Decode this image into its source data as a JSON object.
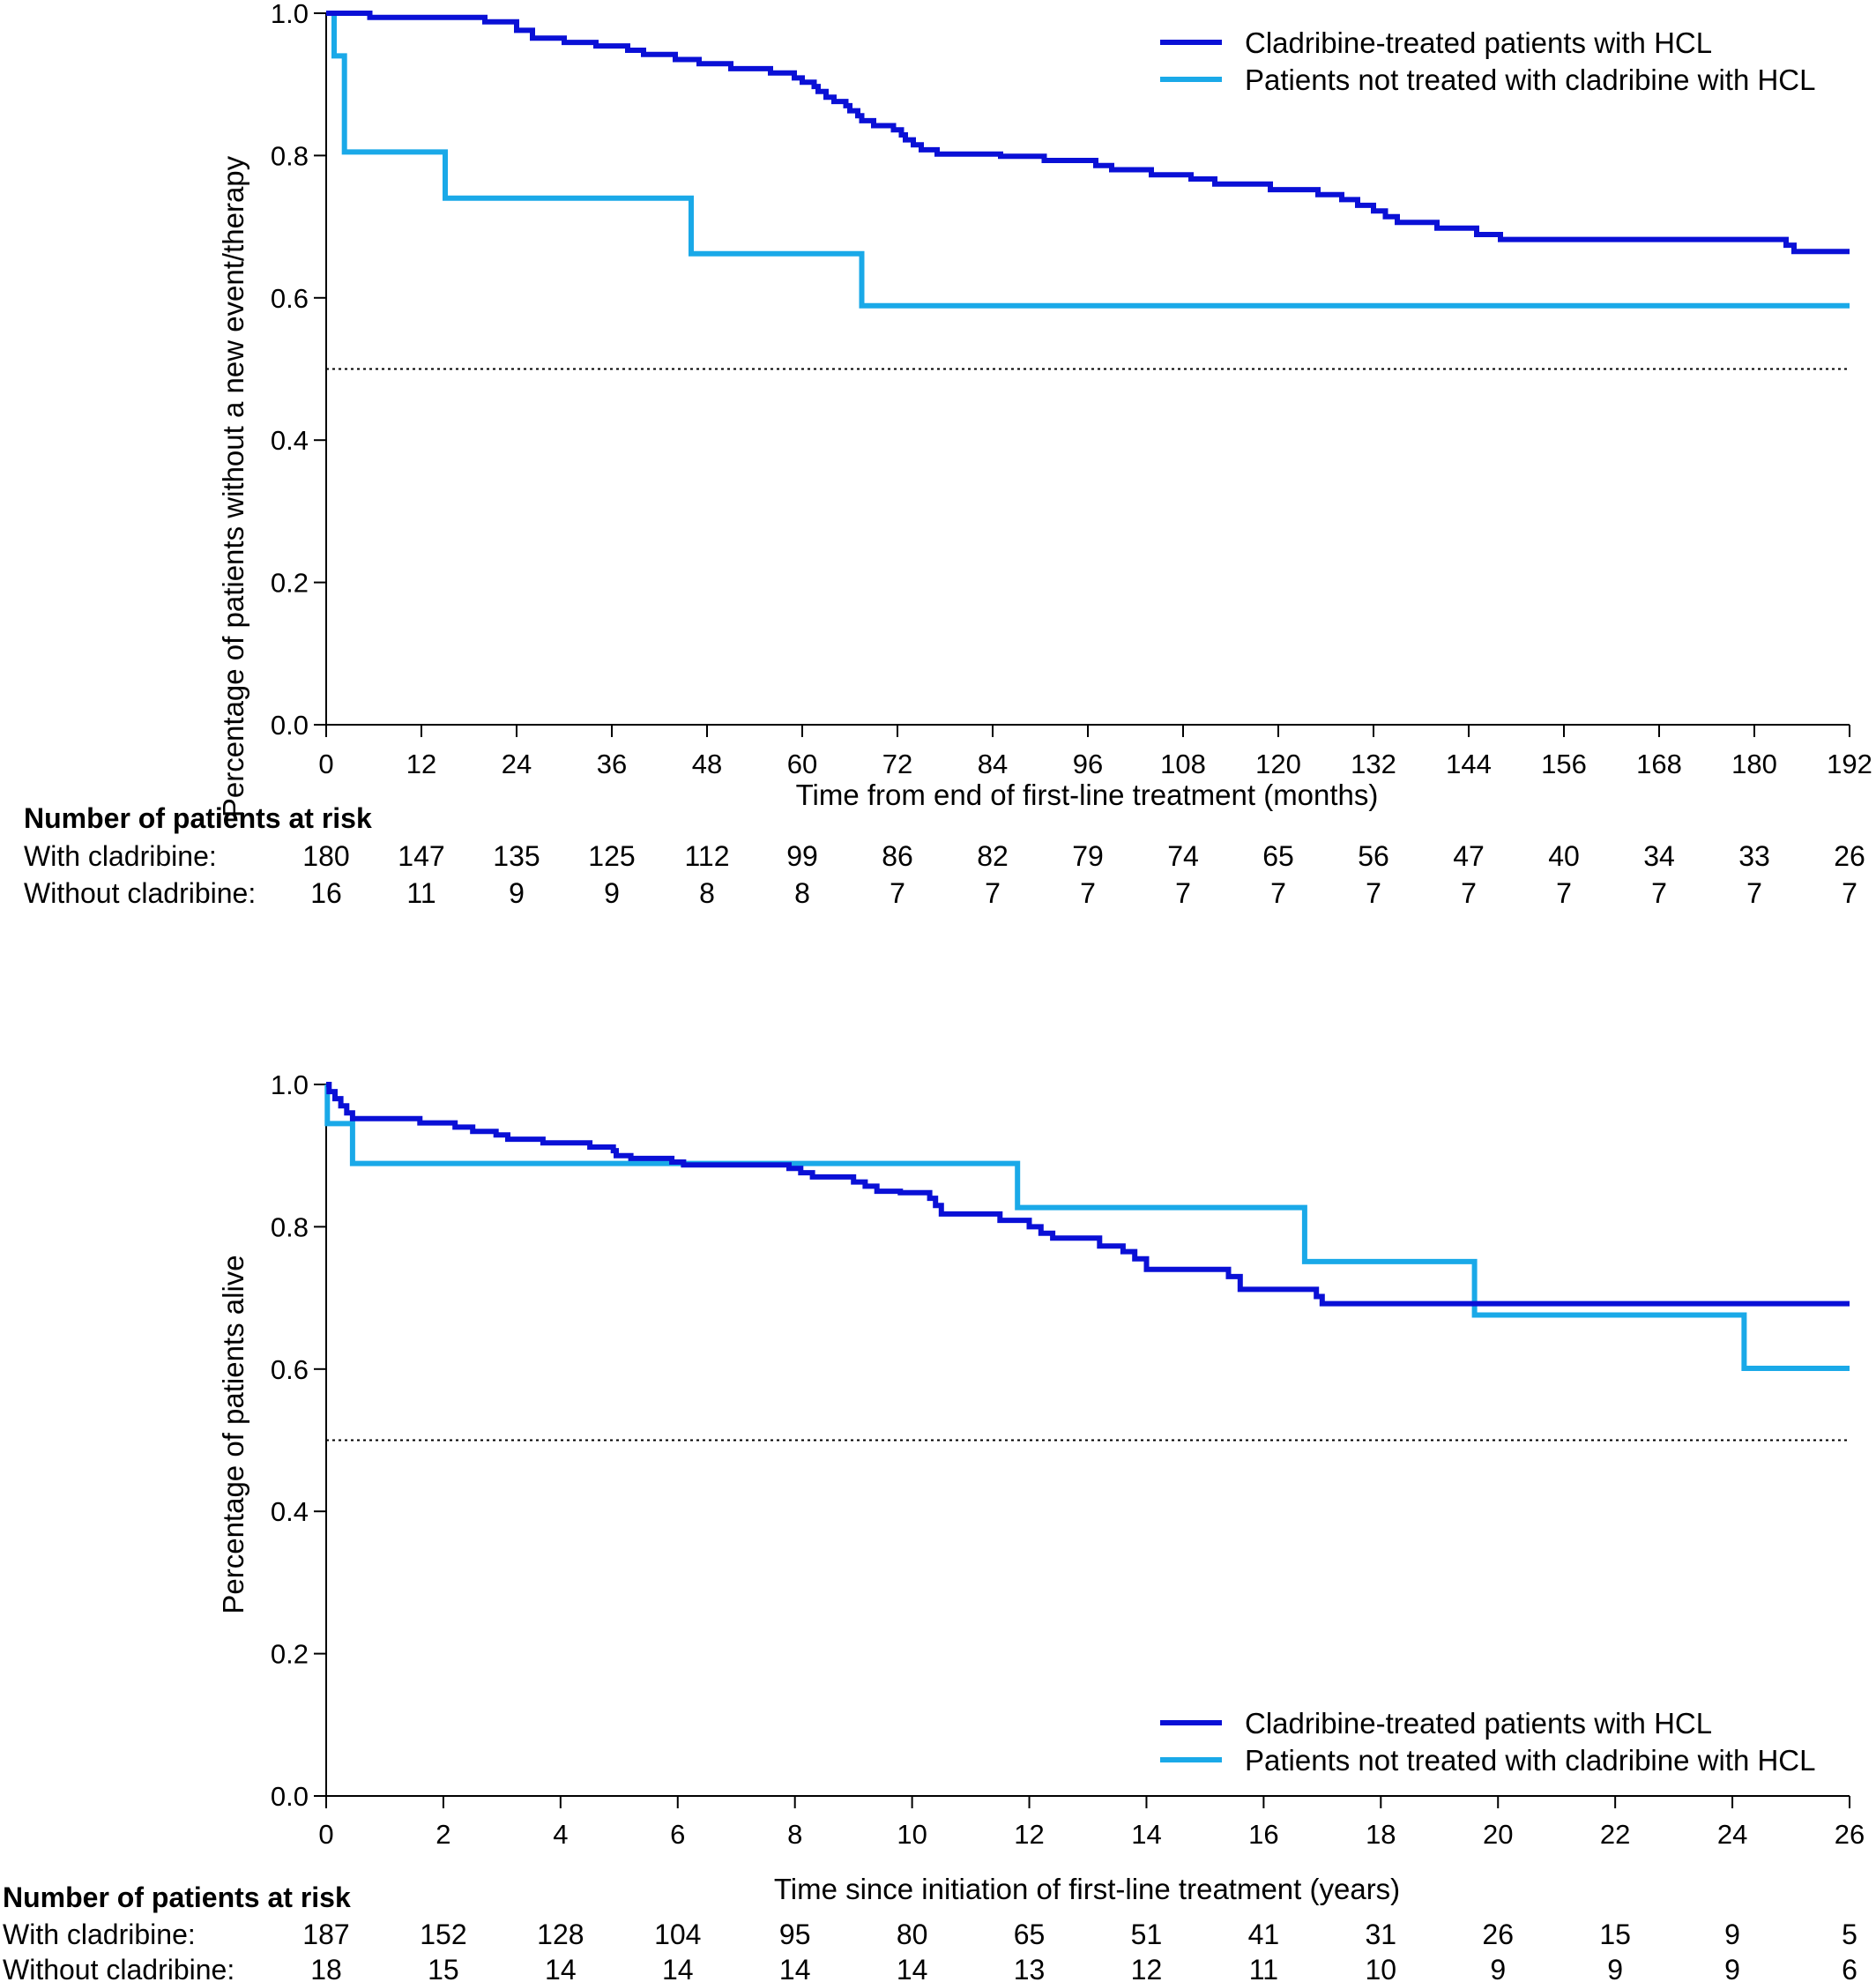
{
  "colors": {
    "cladribine": "#0a10d6",
    "no_cladribine": "#1aa9e8",
    "axis": "#000000",
    "reference_line": "#000000"
  },
  "chart_data": [
    {
      "type": "line",
      "subtype": "kaplan-meier step",
      "title": "",
      "xlabel": "Time from end of first-line treatment (months)",
      "ylabel": "Percentage of patients without a new event/therapy",
      "xlim": [
        0,
        192
      ],
      "ylim": [
        0,
        1.0
      ],
      "xticks": [
        0,
        12,
        24,
        36,
        48,
        60,
        72,
        84,
        96,
        108,
        120,
        132,
        144,
        156,
        168,
        180,
        192
      ],
      "yticks": [
        "0.0",
        "0.2",
        "0.4",
        "0.6",
        "0.8",
        "1.0"
      ],
      "reference_line": {
        "y": 0.5,
        "style": "dotted"
      },
      "legend_position": "top-right",
      "legend": [
        {
          "label": "Cladribine-treated patients with HCL",
          "series": "cladribine"
        },
        {
          "label": "Patients not treated with cladribine with HCL",
          "series": "no_cladribine"
        }
      ],
      "series": [
        {
          "key": "cladribine",
          "name": "Cladribine-treated patients with HCL",
          "points": [
            [
              0,
              1.0
            ],
            [
              5.5,
              0.994
            ],
            [
              20,
              0.988
            ],
            [
              24,
              0.976
            ],
            [
              26,
              0.965
            ],
            [
              30,
              0.959
            ],
            [
              34,
              0.954
            ],
            [
              38,
              0.948
            ],
            [
              40,
              0.942
            ],
            [
              44,
              0.935
            ],
            [
              47,
              0.929
            ],
            [
              51,
              0.922
            ],
            [
              56,
              0.916
            ],
            [
              59,
              0.909
            ],
            [
              60,
              0.903
            ],
            [
              61.5,
              0.897
            ],
            [
              62,
              0.89
            ],
            [
              63,
              0.882
            ],
            [
              64,
              0.876
            ],
            [
              65.5,
              0.87
            ],
            [
              66,
              0.863
            ],
            [
              67,
              0.856
            ],
            [
              67.5,
              0.849
            ],
            [
              69,
              0.842
            ],
            [
              71.5,
              0.836
            ],
            [
              72.5,
              0.829
            ],
            [
              73,
              0.822
            ],
            [
              74,
              0.815
            ],
            [
              75,
              0.808
            ],
            [
              77,
              0.802
            ],
            [
              85,
              0.799
            ],
            [
              90.5,
              0.793
            ],
            [
              97,
              0.786
            ],
            [
              99,
              0.78
            ],
            [
              104,
              0.773
            ],
            [
              109,
              0.767
            ],
            [
              112,
              0.76
            ],
            [
              119,
              0.752
            ],
            [
              125,
              0.745
            ],
            [
              128,
              0.738
            ],
            [
              130,
              0.73
            ],
            [
              132,
              0.722
            ],
            [
              133.5,
              0.714
            ],
            [
              135,
              0.706
            ],
            [
              140,
              0.698
            ],
            [
              145,
              0.689
            ],
            [
              148,
              0.682
            ],
            [
              184,
              0.674
            ],
            [
              185,
              0.665
            ]
          ],
          "end": 192
        },
        {
          "key": "no_cladribine",
          "name": "Patients not treated with cladribine with HCL",
          "points": [
            [
              0,
              1.0
            ],
            [
              1,
              0.94
            ],
            [
              2.3,
              0.805
            ],
            [
              15,
              0.74
            ],
            [
              46,
              0.662
            ],
            [
              67.5,
              0.589
            ]
          ],
          "end": 192
        }
      ],
      "risk_table": {
        "title": "Number of patients at risk",
        "rows": [
          {
            "label": "With cladribine:",
            "values": [
              180,
              147,
              135,
              125,
              112,
              99,
              86,
              82,
              79,
              74,
              65,
              56,
              47,
              40,
              34,
              33,
              26
            ]
          },
          {
            "label": "Without cladribine:",
            "values": [
              16,
              11,
              9,
              9,
              8,
              8,
              7,
              7,
              7,
              7,
              7,
              7,
              7,
              7,
              7,
              7,
              7
            ]
          }
        ]
      }
    },
    {
      "type": "line",
      "subtype": "kaplan-meier step",
      "title": "",
      "xlabel": "Time since initiation of first-line treatment (years)",
      "ylabel": "Percentage of patients alive",
      "xlim": [
        0,
        26
      ],
      "ylim": [
        0,
        1.0
      ],
      "xticks": [
        0,
        2,
        4,
        6,
        8,
        10,
        12,
        14,
        16,
        18,
        20,
        22,
        24,
        26
      ],
      "yticks": [
        "0.0",
        "0.2",
        "0.4",
        "0.6",
        "0.8",
        "1.0"
      ],
      "reference_line": {
        "y": 0.5,
        "style": "dotted"
      },
      "legend_position": "bottom-right",
      "legend": [
        {
          "label": "Cladribine-treated patients with HCL",
          "series": "cladribine"
        },
        {
          "label": "Patients not treated with cladribine with HCL",
          "series": "no_cladribine"
        }
      ],
      "series": [
        {
          "key": "cladribine",
          "name": "Cladribine-treated patients with HCL",
          "points": [
            [
              0,
              1.0
            ],
            [
              0.05,
              0.99
            ],
            [
              0.15,
              0.98
            ],
            [
              0.25,
              0.97
            ],
            [
              0.35,
              0.96
            ],
            [
              0.45,
              0.952
            ],
            [
              1.6,
              0.946
            ],
            [
              2.2,
              0.94
            ],
            [
              2.5,
              0.934
            ],
            [
              2.9,
              0.929
            ],
            [
              3.1,
              0.923
            ],
            [
              3.7,
              0.918
            ],
            [
              4.5,
              0.912
            ],
            [
              4.9,
              0.907
            ],
            [
              4.95,
              0.9
            ],
            [
              5.2,
              0.896
            ],
            [
              5.9,
              0.891
            ],
            [
              6.1,
              0.887
            ],
            [
              7.9,
              0.882
            ],
            [
              8.1,
              0.876
            ],
            [
              8.3,
              0.87
            ],
            [
              9,
              0.863
            ],
            [
              9.2,
              0.857
            ],
            [
              9.4,
              0.85
            ],
            [
              9.8,
              0.848
            ],
            [
              10.3,
              0.84
            ],
            [
              10.4,
              0.83
            ],
            [
              10.5,
              0.818
            ],
            [
              11.5,
              0.809
            ],
            [
              12.0,
              0.8
            ],
            [
              12.2,
              0.791
            ],
            [
              12.4,
              0.784
            ],
            [
              13.2,
              0.773
            ],
            [
              13.6,
              0.765
            ],
            [
              13.8,
              0.755
            ],
            [
              14.0,
              0.74
            ],
            [
              15.4,
              0.73
            ],
            [
              15.6,
              0.712
            ],
            [
              16.9,
              0.702
            ],
            [
              17,
              0.692
            ]
          ],
          "end": 26
        },
        {
          "key": "no_cladribine",
          "name": "Patients not treated with cladribine with HCL",
          "points": [
            [
              0,
              1.0
            ],
            [
              0.02,
              0.945
            ],
            [
              0.45,
              0.889
            ],
            [
              11.8,
              0.827
            ],
            [
              16.7,
              0.751
            ],
            [
              19.6,
              0.676
            ],
            [
              24.2,
              0.601
            ]
          ],
          "end": 26
        }
      ],
      "risk_table": {
        "title": "Number of patients at risk",
        "rows": [
          {
            "label": "With cladribine:",
            "values": [
              187,
              152,
              128,
              104,
              95,
              80,
              65,
              51,
              41,
              31,
              26,
              15,
              9,
              5
            ]
          },
          {
            "label": "Without cladribine:",
            "values": [
              18,
              15,
              14,
              14,
              14,
              14,
              13,
              12,
              11,
              10,
              9,
              9,
              9,
              6
            ]
          }
        ]
      }
    }
  ]
}
